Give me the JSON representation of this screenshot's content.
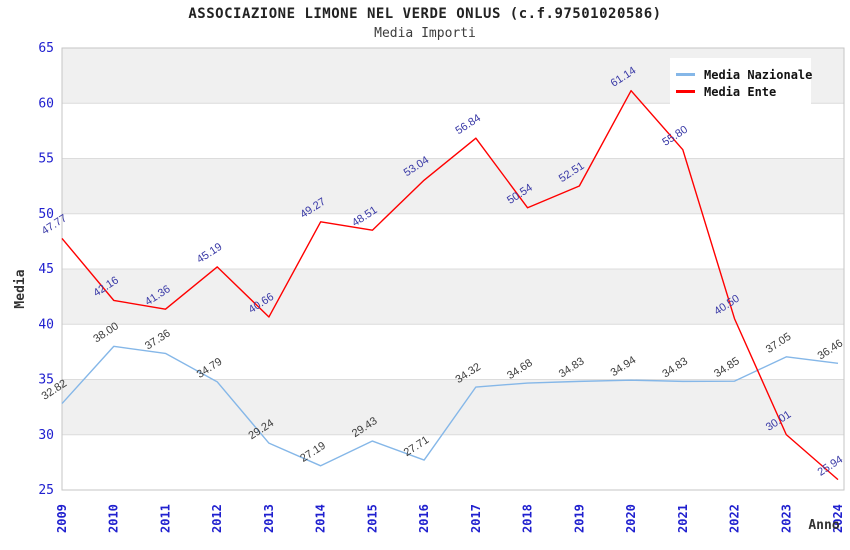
{
  "title": "ASSOCIAZIONE LIMONE NEL VERDE ONLUS (c.f.97501020586)",
  "subtitle": "Media Importi",
  "chart_data": {
    "type": "line",
    "title": "ASSOCIAZIONE LIMONE NEL VERDE ONLUS (c.f.97501020586)",
    "subtitle": "Media Importi",
    "xlabel": "Anno",
    "ylabel": "Media",
    "ylim": [
      25,
      65
    ],
    "ytick_step": 5,
    "yticks": [
      25,
      30,
      35,
      40,
      45,
      50,
      55,
      60,
      65
    ],
    "grid": "horizontal-bands-alternating",
    "legend_position": "top-right",
    "categories": [
      "2009",
      "2010",
      "2011",
      "2012",
      "2013",
      "2014",
      "2015",
      "2016",
      "2017",
      "2018",
      "2019",
      "2020",
      "2021",
      "2022",
      "2023",
      "2024"
    ],
    "series": [
      {
        "name": "Media Nazionale",
        "color": "#85b7e8",
        "label_color": "#3c3c3c",
        "values": [
          32.82,
          38.0,
          37.36,
          34.79,
          29.24,
          27.19,
          29.43,
          27.71,
          34.32,
          34.68,
          34.83,
          34.94,
          34.83,
          34.85,
          37.05,
          36.46
        ],
        "labels": [
          "32.82",
          "38.00",
          "37.36",
          "34.79",
          "29.24",
          "27.19",
          "29.43",
          "27.71",
          "34.32",
          "34.68",
          "34.83",
          "34.94",
          "34.83",
          "34.85",
          "37.05",
          "36.46"
        ]
      },
      {
        "name": "Media Ente",
        "color": "#ff0000",
        "label_color": "#3838a6",
        "values": [
          47.77,
          42.16,
          41.36,
          45.19,
          40.66,
          49.27,
          48.51,
          53.04,
          56.84,
          50.54,
          52.51,
          61.14,
          55.8,
          40.5,
          30.01,
          25.94
        ],
        "labels": [
          "47.77",
          "42.16",
          "41.36",
          "45.19",
          "40.66",
          "49.27",
          "48.51",
          "53.04",
          "56.84",
          "50.54",
          "52.51",
          "61.14",
          "55.80",
          "40.50",
          "30.01",
          "25.94"
        ]
      }
    ],
    "style": {
      "band_fill": "#f0f0f0",
      "grid_line": "#dcdcdc",
      "plot_border": "#c6c6c6",
      "tick_label_color": "#2020cf",
      "axis_title_color": "#333333"
    }
  }
}
